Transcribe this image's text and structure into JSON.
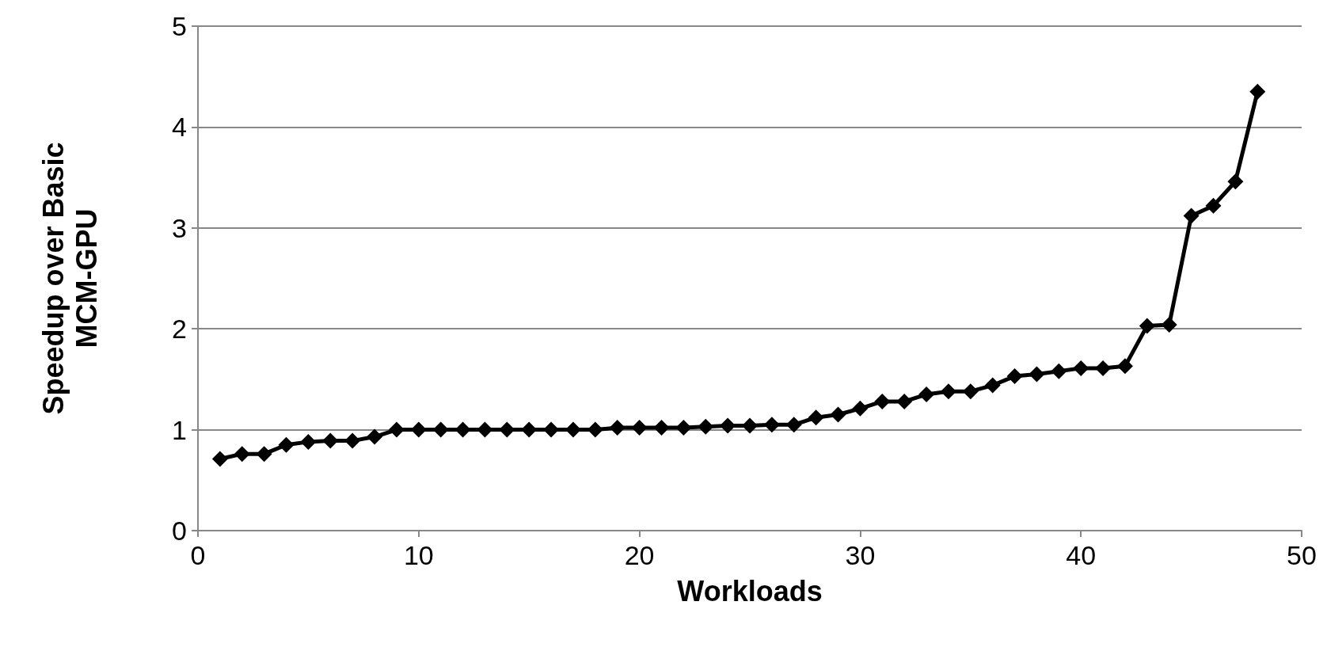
{
  "chart_data": {
    "type": "line",
    "xlabel": "Workloads",
    "ylabel": "Speedup over Basic MCM-GPU",
    "x": [
      1,
      2,
      3,
      4,
      5,
      6,
      7,
      8,
      9,
      10,
      11,
      12,
      13,
      14,
      15,
      16,
      17,
      18,
      19,
      20,
      21,
      22,
      23,
      24,
      25,
      26,
      27,
      28,
      29,
      30,
      31,
      32,
      33,
      34,
      35,
      36,
      37,
      38,
      39,
      40,
      41,
      42,
      43,
      44,
      45,
      46,
      47,
      48
    ],
    "series": [
      {
        "color": "#000000",
        "values": [
          0.71,
          0.76,
          0.76,
          0.85,
          0.88,
          0.89,
          0.89,
          0.93,
          1.0,
          1.0,
          1.0,
          1.0,
          1.0,
          1.0,
          1.0,
          1.0,
          1.0,
          1.0,
          1.02,
          1.02,
          1.02,
          1.02,
          1.03,
          1.04,
          1.04,
          1.05,
          1.05,
          1.12,
          1.15,
          1.21,
          1.28,
          1.28,
          1.35,
          1.38,
          1.38,
          1.44,
          1.53,
          1.55,
          1.58,
          1.61,
          1.61,
          1.63,
          2.03,
          2.04,
          3.12,
          3.22,
          3.46,
          4.35
        ]
      }
    ],
    "xlim": [
      0,
      50
    ],
    "xticks": [
      0,
      10,
      20,
      30,
      40,
      50
    ],
    "ylim": [
      0,
      5
    ],
    "yticks": [
      0,
      1,
      2,
      3,
      4,
      5
    ],
    "grid": "y",
    "marker": "diamond",
    "line_style": "solid"
  }
}
